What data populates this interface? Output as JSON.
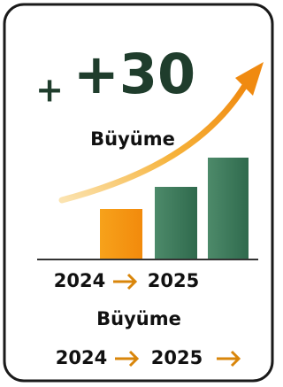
{
  "badge": {
    "plus": "+",
    "value": "+30",
    "label": "Büyüme"
  },
  "axis": {
    "start": "2024",
    "end": "2025"
  },
  "footer": {
    "label": "Büyüme",
    "start": "2024",
    "end": "2025"
  }
}
